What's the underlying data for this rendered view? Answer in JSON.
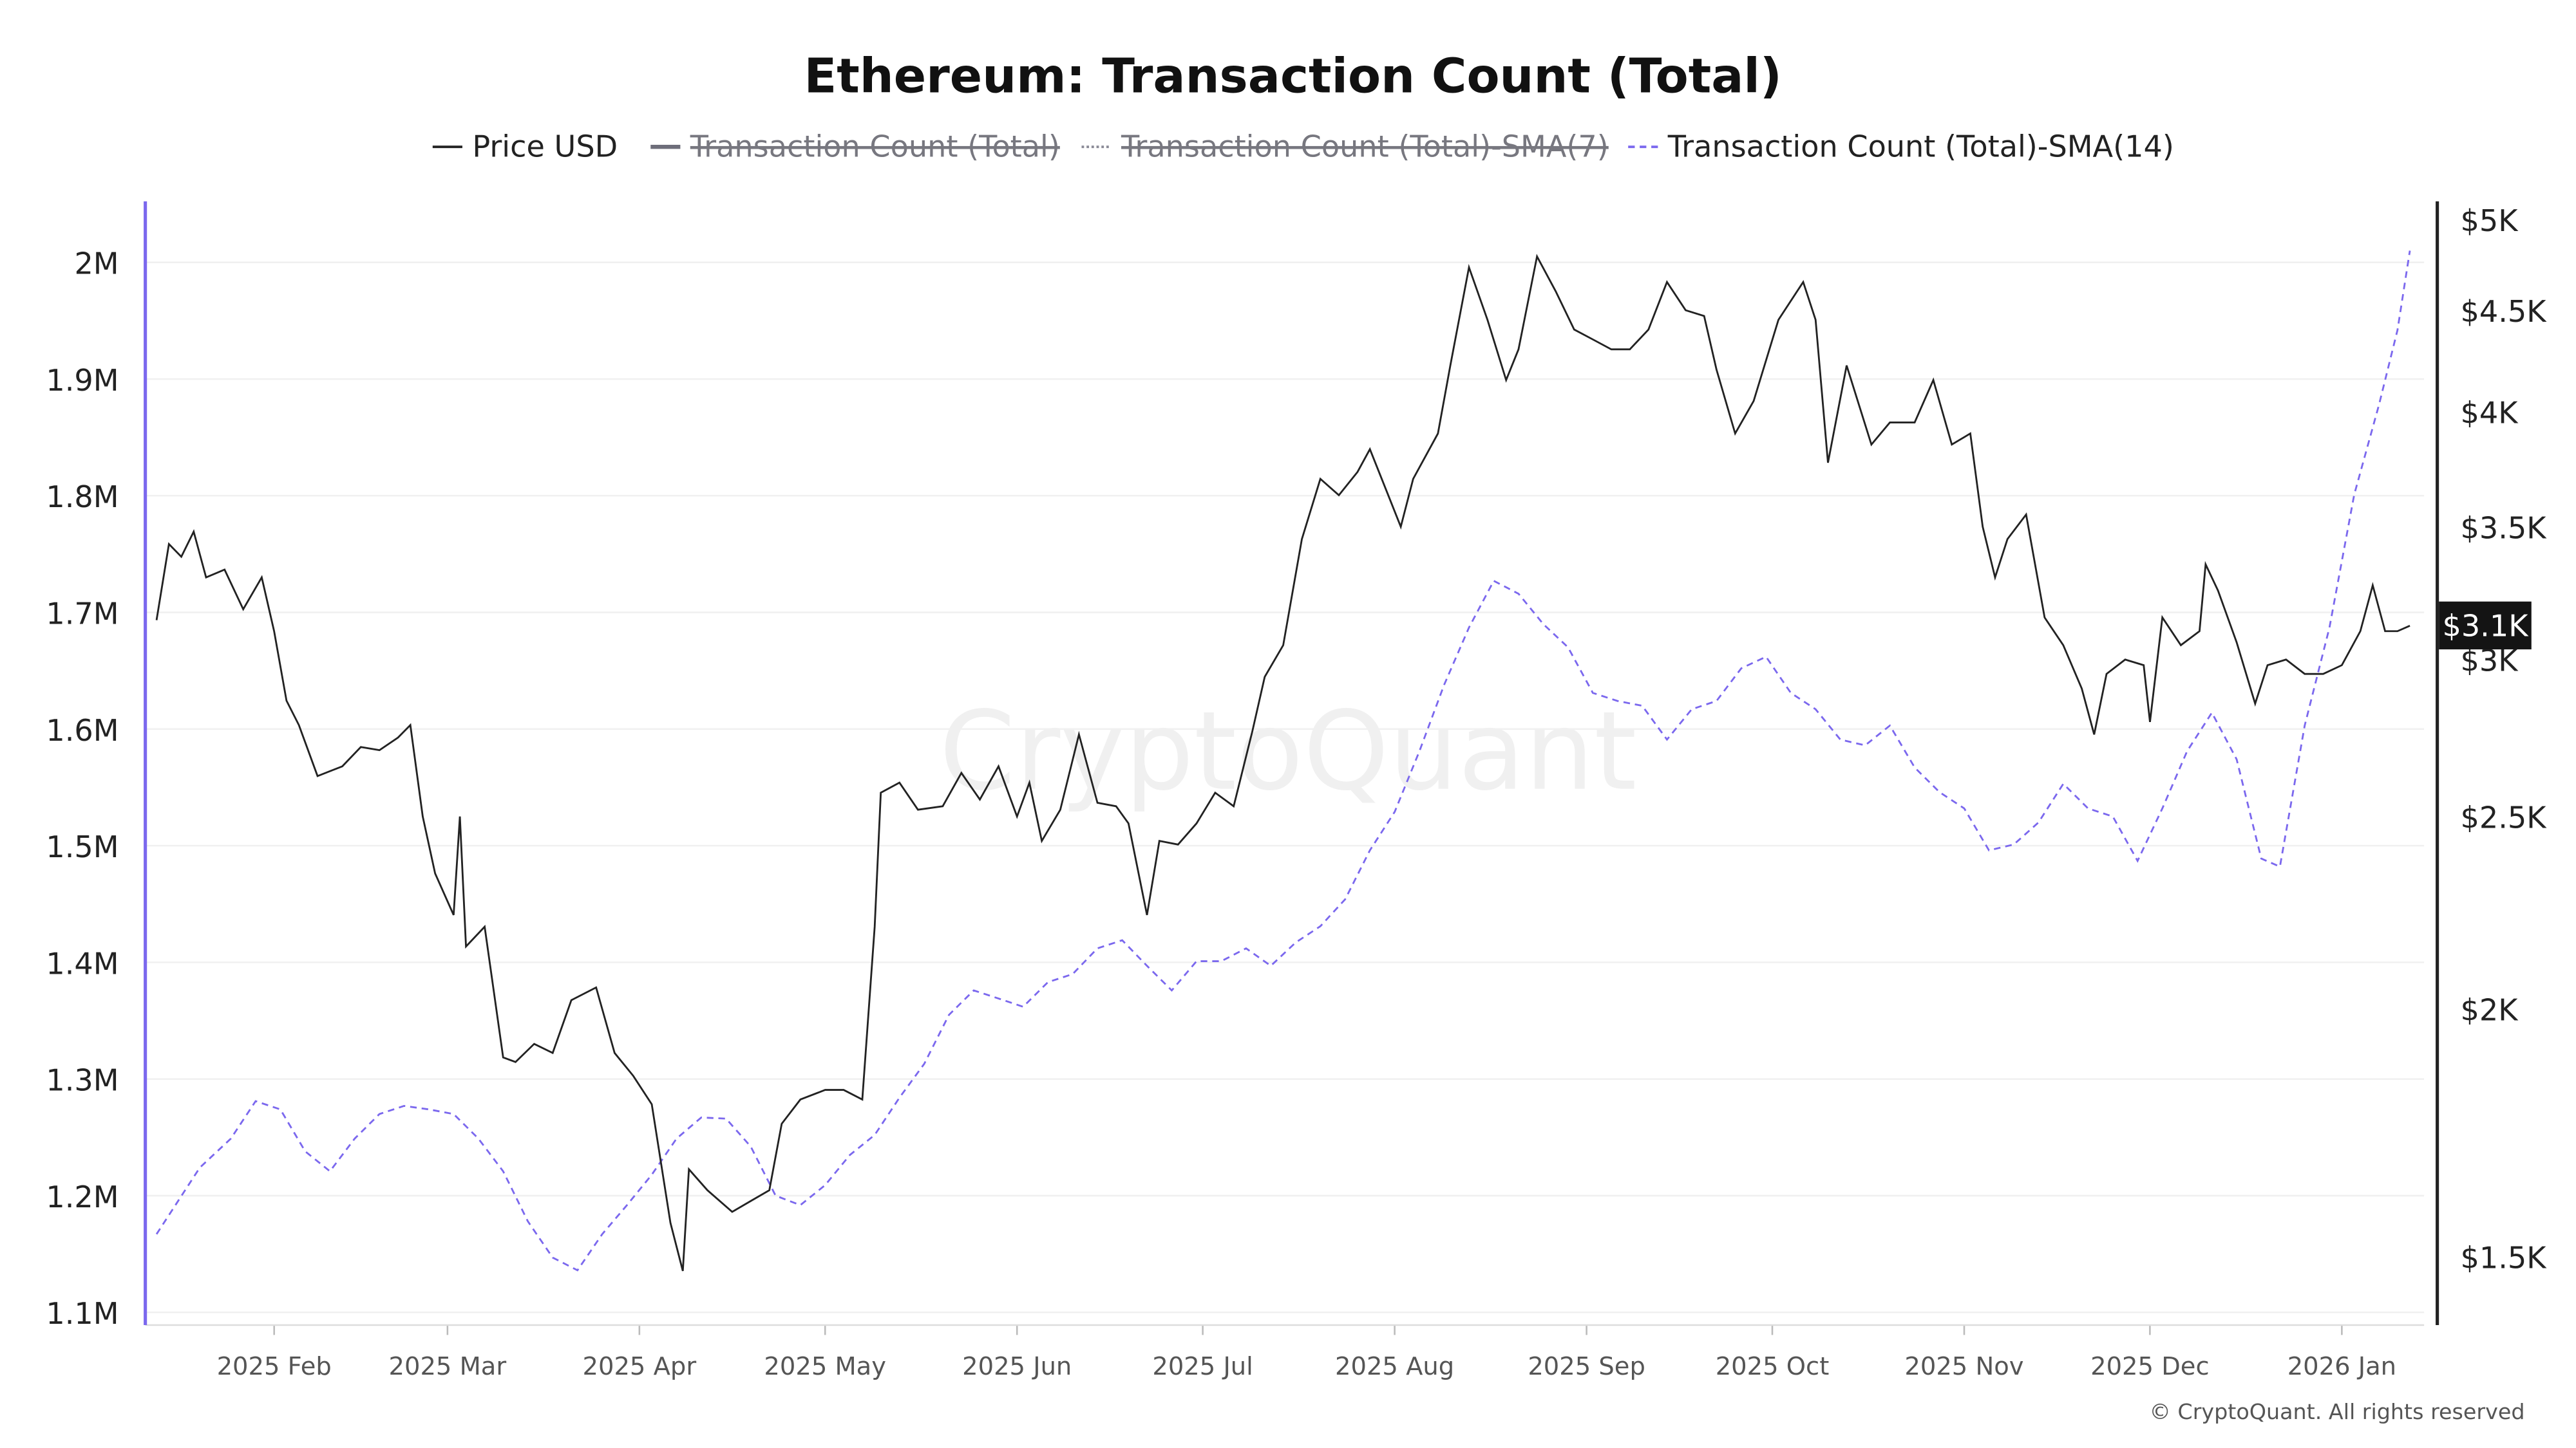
{
  "chart_data": {
    "type": "line",
    "title": "Ethereum: Transaction Count (Total)",
    "legend": {
      "placement": "top",
      "items": [
        {
          "label": "Price USD",
          "color": "#222222",
          "style": "solid",
          "hidden": false
        },
        {
          "label": "Transaction Count (Total)",
          "color": "#6e6e7a",
          "style": "solid",
          "hidden": true
        },
        {
          "label": "Transaction Count (Total)-SMA(7)",
          "color": "#8a8a96",
          "style": "dotted",
          "hidden": true
        },
        {
          "label": "Transaction Count (Total)-SMA(14)",
          "color": "#7b68ee",
          "style": "dashed",
          "hidden": false
        }
      ]
    },
    "x_ticks": [
      {
        "date": "2025-02-01",
        "label": "2025 Feb"
      },
      {
        "date": "2025-03-01",
        "label": "2025 Mar"
      },
      {
        "date": "2025-04-01",
        "label": "2025 Apr"
      },
      {
        "date": "2025-05-01",
        "label": "2025 May"
      },
      {
        "date": "2025-06-01",
        "label": "2025 Jun"
      },
      {
        "date": "2025-07-01",
        "label": "2025 Jul"
      },
      {
        "date": "2025-08-01",
        "label": "2025 Aug"
      },
      {
        "date": "2025-09-01",
        "label": "2025 Sep"
      },
      {
        "date": "2025-10-01",
        "label": "2025 Oct"
      },
      {
        "date": "2025-11-01",
        "label": "2025 Nov"
      },
      {
        "date": "2025-12-01",
        "label": "2025 Dec"
      },
      {
        "date": "2026-01-01",
        "label": "2026 Jan"
      }
    ],
    "left_axis": {
      "scale": "linear",
      "ylim": [
        1100000,
        2000000
      ],
      "ticks": [
        {
          "v": 2000000,
          "label": "2M"
        },
        {
          "v": 1900000,
          "label": "1.9M"
        },
        {
          "v": 1800000,
          "label": "1.8M"
        },
        {
          "v": 1700000,
          "label": "1.7M"
        },
        {
          "v": 1600000,
          "label": "1.6M"
        },
        {
          "v": 1500000,
          "label": "1.5M"
        },
        {
          "v": 1400000,
          "label": "1.4M"
        },
        {
          "v": 1300000,
          "label": "1.3M"
        },
        {
          "v": 1200000,
          "label": "1.2M"
        },
        {
          "v": 1100000,
          "label": "1.1M"
        }
      ],
      "color": "#7b68ee"
    },
    "right_axis": {
      "scale": "log",
      "ticks": [
        {
          "v": 5000,
          "label": "$5K"
        },
        {
          "v": 4500,
          "label": "$4.5K"
        },
        {
          "v": 4000,
          "label": "$4K"
        },
        {
          "v": 3500,
          "label": "$3.5K"
        },
        {
          "v": 3000,
          "label": "$3K"
        },
        {
          "v": 2500,
          "label": "$2.5K"
        },
        {
          "v": 2000,
          "label": "$2K"
        },
        {
          "v": 1500,
          "label": "$1.5K"
        }
      ],
      "current_value": 3100,
      "current_label": "$3.1K"
    },
    "grid": true,
    "series": [
      {
        "name": "Price USD",
        "axis": "right",
        "points": [
          [
            "2025-01-13",
            3140
          ],
          [
            "2025-01-15",
            3430
          ],
          [
            "2025-01-17",
            3380
          ],
          [
            "2025-01-19",
            3480
          ],
          [
            "2025-01-21",
            3300
          ],
          [
            "2025-01-24",
            3330
          ],
          [
            "2025-01-27",
            3180
          ],
          [
            "2025-01-30",
            3300
          ],
          [
            "2025-02-01",
            3100
          ],
          [
            "2025-02-03",
            2860
          ],
          [
            "2025-02-05",
            2780
          ],
          [
            "2025-02-08",
            2620
          ],
          [
            "2025-02-12",
            2650
          ],
          [
            "2025-02-15",
            2710
          ],
          [
            "2025-02-18",
            2700
          ],
          [
            "2025-02-21",
            2740
          ],
          [
            "2025-02-23",
            2780
          ],
          [
            "2025-02-25",
            2500
          ],
          [
            "2025-02-27",
            2340
          ],
          [
            "2025-03-02",
            2230
          ],
          [
            "2025-03-03",
            2500
          ],
          [
            "2025-03-04",
            2150
          ],
          [
            "2025-03-07",
            2200
          ],
          [
            "2025-03-10",
            1890
          ],
          [
            "2025-03-12",
            1880
          ],
          [
            "2025-03-15",
            1920
          ],
          [
            "2025-03-18",
            1900
          ],
          [
            "2025-03-21",
            2020
          ],
          [
            "2025-03-25",
            2050
          ],
          [
            "2025-03-28",
            1900
          ],
          [
            "2025-03-31",
            1850
          ],
          [
            "2025-04-03",
            1790
          ],
          [
            "2025-04-06",
            1560
          ],
          [
            "2025-04-08",
            1475
          ],
          [
            "2025-04-09",
            1660
          ],
          [
            "2025-04-12",
            1620
          ],
          [
            "2025-04-16",
            1580
          ],
          [
            "2025-04-19",
            1600
          ],
          [
            "2025-04-22",
            1620
          ],
          [
            "2025-04-24",
            1750
          ],
          [
            "2025-04-27",
            1800
          ],
          [
            "2025-05-01",
            1820
          ],
          [
            "2025-05-04",
            1820
          ],
          [
            "2025-05-07",
            1800
          ],
          [
            "2025-05-09",
            2200
          ],
          [
            "2025-05-10",
            2570
          ],
          [
            "2025-05-13",
            2600
          ],
          [
            "2025-05-16",
            2520
          ],
          [
            "2025-05-20",
            2530
          ],
          [
            "2025-05-23",
            2630
          ],
          [
            "2025-05-26",
            2550
          ],
          [
            "2025-05-29",
            2650
          ],
          [
            "2025-06-01",
            2500
          ],
          [
            "2025-06-03",
            2600
          ],
          [
            "2025-06-05",
            2430
          ],
          [
            "2025-06-08",
            2520
          ],
          [
            "2025-06-11",
            2750
          ],
          [
            "2025-06-14",
            2540
          ],
          [
            "2025-06-17",
            2530
          ],
          [
            "2025-06-19",
            2480
          ],
          [
            "2025-06-22",
            2230
          ],
          [
            "2025-06-24",
            2430
          ],
          [
            "2025-06-27",
            2420
          ],
          [
            "2025-06-30",
            2480
          ],
          [
            "2025-07-03",
            2570
          ],
          [
            "2025-07-06",
            2530
          ],
          [
            "2025-07-09",
            2760
          ],
          [
            "2025-07-11",
            2940
          ],
          [
            "2025-07-14",
            3050
          ],
          [
            "2025-07-17",
            3450
          ],
          [
            "2025-07-20",
            3700
          ],
          [
            "2025-07-23",
            3630
          ],
          [
            "2025-07-26",
            3730
          ],
          [
            "2025-07-28",
            3830
          ],
          [
            "2025-08-02",
            3500
          ],
          [
            "2025-08-04",
            3700
          ],
          [
            "2025-08-08",
            3900
          ],
          [
            "2025-08-10",
            4220
          ],
          [
            "2025-08-13",
            4730
          ],
          [
            "2025-08-16",
            4450
          ],
          [
            "2025-08-19",
            4150
          ],
          [
            "2025-08-21",
            4300
          ],
          [
            "2025-08-24",
            4790
          ],
          [
            "2025-08-27",
            4600
          ],
          [
            "2025-08-30",
            4400
          ],
          [
            "2025-09-02",
            4350
          ],
          [
            "2025-09-05",
            4300
          ],
          [
            "2025-09-08",
            4300
          ],
          [
            "2025-09-11",
            4400
          ],
          [
            "2025-09-14",
            4650
          ],
          [
            "2025-09-17",
            4500
          ],
          [
            "2025-09-20",
            4470
          ],
          [
            "2025-09-22",
            4200
          ],
          [
            "2025-09-25",
            3900
          ],
          [
            "2025-09-28",
            4050
          ],
          [
            "2025-10-02",
            4450
          ],
          [
            "2025-10-06",
            4650
          ],
          [
            "2025-10-08",
            4450
          ],
          [
            "2025-10-10",
            3770
          ],
          [
            "2025-10-13",
            4220
          ],
          [
            "2025-10-17",
            3850
          ],
          [
            "2025-10-20",
            3950
          ],
          [
            "2025-10-24",
            3950
          ],
          [
            "2025-10-27",
            4150
          ],
          [
            "2025-10-30",
            3850
          ],
          [
            "2025-11-02",
            3900
          ],
          [
            "2025-11-04",
            3500
          ],
          [
            "2025-11-06",
            3300
          ],
          [
            "2025-11-08",
            3450
          ],
          [
            "2025-11-11",
            3550
          ],
          [
            "2025-11-14",
            3150
          ],
          [
            "2025-11-17",
            3050
          ],
          [
            "2025-11-20",
            2900
          ],
          [
            "2025-11-22",
            2750
          ],
          [
            "2025-11-24",
            2950
          ],
          [
            "2025-11-27",
            3000
          ],
          [
            "2025-11-30",
            2980
          ],
          [
            "2025-12-01",
            2790
          ],
          [
            "2025-12-03",
            3150
          ],
          [
            "2025-12-06",
            3050
          ],
          [
            "2025-12-09",
            3100
          ],
          [
            "2025-12-10",
            3350
          ],
          [
            "2025-12-12",
            3250
          ],
          [
            "2025-12-15",
            3060
          ],
          [
            "2025-12-18",
            2850
          ],
          [
            "2025-12-20",
            2980
          ],
          [
            "2025-12-23",
            3000
          ],
          [
            "2025-12-26",
            2950
          ],
          [
            "2025-12-29",
            2950
          ],
          [
            "2026-01-01",
            2980
          ],
          [
            "2026-01-04",
            3100
          ],
          [
            "2026-01-06",
            3270
          ],
          [
            "2026-01-08",
            3100
          ],
          [
            "2026-01-10",
            3100
          ],
          [
            "2026-01-12",
            3120
          ]
        ]
      },
      {
        "name": "Transaction Count (Total)-SMA(14)",
        "axis": "left",
        "points": [
          [
            "2025-01-13",
            1167000
          ],
          [
            "2025-01-20",
            1224000
          ],
          [
            "2025-01-25",
            1249000
          ],
          [
            "2025-01-29",
            1281000
          ],
          [
            "2025-02-02",
            1274000
          ],
          [
            "2025-02-06",
            1238000
          ],
          [
            "2025-02-10",
            1221000
          ],
          [
            "2025-02-14",
            1249000
          ],
          [
            "2025-02-18",
            1270000
          ],
          [
            "2025-02-22",
            1277000
          ],
          [
            "2025-02-26",
            1274000
          ],
          [
            "2025-03-02",
            1270000
          ],
          [
            "2025-03-06",
            1249000
          ],
          [
            "2025-03-10",
            1221000
          ],
          [
            "2025-03-14",
            1178000
          ],
          [
            "2025-03-18",
            1147000
          ],
          [
            "2025-03-22",
            1136000
          ],
          [
            "2025-03-26",
            1167000
          ],
          [
            "2025-03-30",
            1192000
          ],
          [
            "2025-04-03",
            1218000
          ],
          [
            "2025-04-07",
            1249000
          ],
          [
            "2025-04-11",
            1267000
          ],
          [
            "2025-04-15",
            1266000
          ],
          [
            "2025-04-19",
            1242000
          ],
          [
            "2025-04-23",
            1200000
          ],
          [
            "2025-04-27",
            1192000
          ],
          [
            "2025-05-01",
            1209000
          ],
          [
            "2025-05-05",
            1235000
          ],
          [
            "2025-05-09",
            1252000
          ],
          [
            "2025-05-13",
            1284000
          ],
          [
            "2025-05-17",
            1313000
          ],
          [
            "2025-05-21",
            1355000
          ],
          [
            "2025-05-25",
            1376000
          ],
          [
            "2025-05-29",
            1369000
          ],
          [
            "2025-06-02",
            1362000
          ],
          [
            "2025-06-06",
            1383000
          ],
          [
            "2025-06-10",
            1390000
          ],
          [
            "2025-06-14",
            1412000
          ],
          [
            "2025-06-18",
            1419000
          ],
          [
            "2025-06-22",
            1397000
          ],
          [
            "2025-06-26",
            1376000
          ],
          [
            "2025-06-30",
            1401000
          ],
          [
            "2025-07-04",
            1401000
          ],
          [
            "2025-07-08",
            1412000
          ],
          [
            "2025-07-12",
            1397000
          ],
          [
            "2025-07-16",
            1417000
          ],
          [
            "2025-07-20",
            1431000
          ],
          [
            "2025-07-24",
            1454000
          ],
          [
            "2025-07-28",
            1496000
          ],
          [
            "2025-08-01",
            1529000
          ],
          [
            "2025-08-05",
            1581000
          ],
          [
            "2025-08-09",
            1638000
          ],
          [
            "2025-08-13",
            1687000
          ],
          [
            "2025-08-17",
            1727000
          ],
          [
            "2025-08-21",
            1716000
          ],
          [
            "2025-08-25",
            1690000
          ],
          [
            "2025-08-29",
            1670000
          ],
          [
            "2025-09-02",
            1631000
          ],
          [
            "2025-09-06",
            1624000
          ],
          [
            "2025-09-10",
            1620000
          ],
          [
            "2025-09-14",
            1591000
          ],
          [
            "2025-09-18",
            1617000
          ],
          [
            "2025-09-22",
            1624000
          ],
          [
            "2025-09-26",
            1652000
          ],
          [
            "2025-09-30",
            1662000
          ],
          [
            "2025-10-04",
            1631000
          ],
          [
            "2025-10-08",
            1617000
          ],
          [
            "2025-10-12",
            1591000
          ],
          [
            "2025-10-16",
            1586000
          ],
          [
            "2025-10-20",
            1603000
          ],
          [
            "2025-10-24",
            1567000
          ],
          [
            "2025-10-28",
            1546000
          ],
          [
            "2025-11-01",
            1532000
          ],
          [
            "2025-11-05",
            1496000
          ],
          [
            "2025-11-09",
            1501000
          ],
          [
            "2025-11-13",
            1520000
          ],
          [
            "2025-11-17",
            1553000
          ],
          [
            "2025-11-21",
            1532000
          ],
          [
            "2025-11-25",
            1525000
          ],
          [
            "2025-11-29",
            1487000
          ],
          [
            "2025-12-03",
            1532000
          ],
          [
            "2025-12-07",
            1581000
          ],
          [
            "2025-12-11",
            1614000
          ],
          [
            "2025-12-15",
            1574000
          ],
          [
            "2025-12-19",
            1489000
          ],
          [
            "2025-12-22",
            1482000
          ],
          [
            "2025-12-26",
            1603000
          ],
          [
            "2025-12-30",
            1687000
          ],
          [
            "2026-01-03",
            1801000
          ],
          [
            "2026-01-07",
            1878000
          ],
          [
            "2026-01-10",
            1942000
          ],
          [
            "2026-01-12",
            2010000
          ]
        ]
      }
    ]
  },
  "watermark": "CryptoQuant",
  "footer": "© CryptoQuant. All rights reserved"
}
